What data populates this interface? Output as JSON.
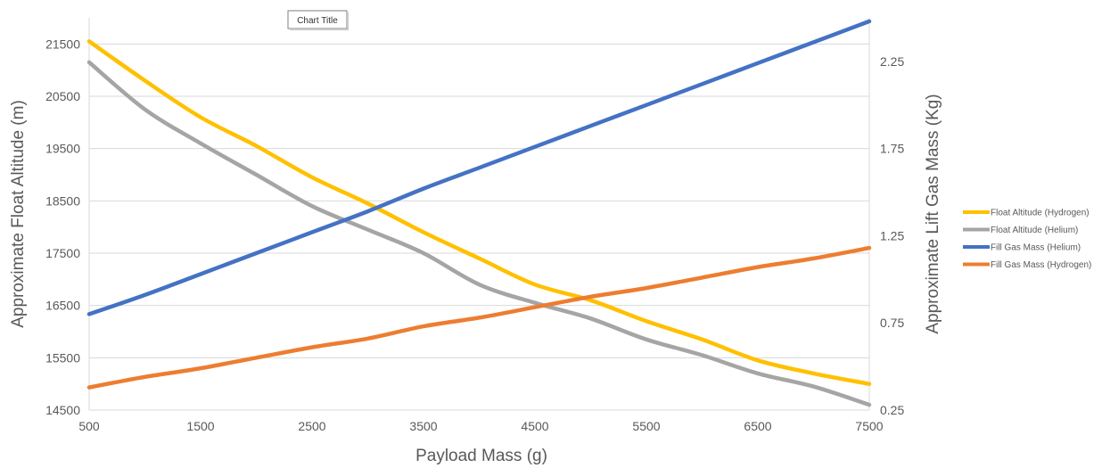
{
  "chart_data": {
    "type": "line",
    "title": "Chart Title",
    "xlabel": "Payload Mass (g)",
    "ylabel": "Approximate Float Altitude (m)",
    "y2label": "Approximate Lift Gas Mass (Kg)",
    "xlim": [
      500,
      7500
    ],
    "ylim": [
      14500,
      22000
    ],
    "y2lim": [
      0.25,
      2.5
    ],
    "xticks": [
      "500",
      "1500",
      "2500",
      "3500",
      "4500",
      "5500",
      "6500",
      "7500"
    ],
    "yticks": [
      "14500",
      "15500",
      "16500",
      "17500",
      "18500",
      "19500",
      "20500",
      "21500"
    ],
    "y2ticks": [
      "0.25",
      "0.75",
      "1.25",
      "1.75",
      "2.25"
    ],
    "grid": true,
    "legend_position": "right",
    "x": [
      500,
      1000,
      1500,
      2000,
      2500,
      3000,
      3500,
      4000,
      4500,
      5000,
      5500,
      6000,
      6500,
      7000,
      7500
    ],
    "series": [
      {
        "name": "Float Altitude (Hydrogen)",
        "axis": "left",
        "color": "#ffc000",
        "values": [
          21550,
          20800,
          20100,
          19550,
          18950,
          18450,
          17900,
          17400,
          16900,
          16600,
          16200,
          15850,
          15450,
          15200,
          15000
        ]
      },
      {
        "name": "Float Altitude (Helium)",
        "axis": "left",
        "color": "#a5a5a5",
        "values": [
          21150,
          20250,
          19600,
          19000,
          18400,
          17950,
          17500,
          16900,
          16550,
          16250,
          15850,
          15550,
          15200,
          14950,
          14600
        ]
      },
      {
        "name": "Fill Gas Mass (Helium)",
        "axis": "right",
        "color": "#4472c4",
        "values": [
          0.8,
          0.91,
          1.03,
          1.15,
          1.27,
          1.39,
          1.52,
          1.64,
          1.76,
          1.88,
          2.0,
          2.12,
          2.24,
          2.36,
          2.48
        ]
      },
      {
        "name": "Fill Gas Mass (Hydrogen)",
        "axis": "right",
        "color": "#ed7d31",
        "values": [
          0.38,
          0.44,
          0.49,
          0.55,
          0.61,
          0.66,
          0.73,
          0.78,
          0.84,
          0.9,
          0.95,
          1.01,
          1.07,
          1.12,
          1.18
        ]
      }
    ]
  }
}
